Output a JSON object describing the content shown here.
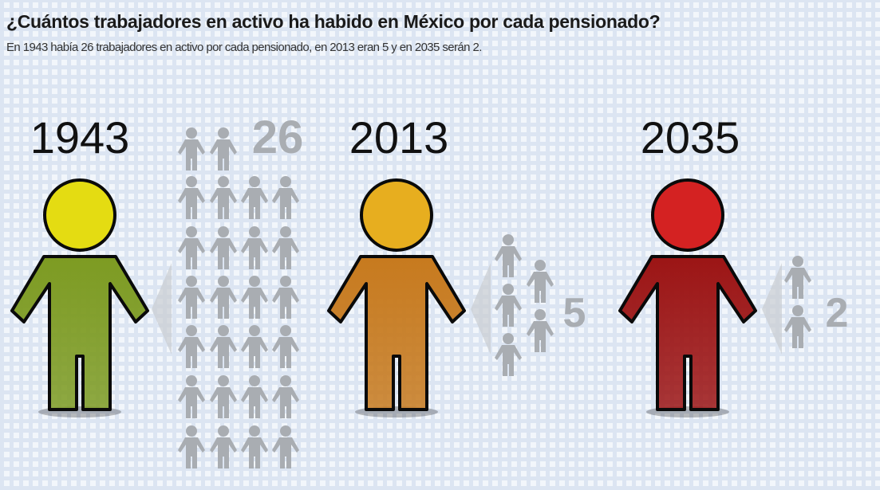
{
  "title": "¿Cuántos trabajadores en activo ha habido en México por cada pensionado?",
  "subtitle": "En 1943 había 26 trabajadores en activo por cada pensionado, en 2013 eran 5 y en 2035 serán 2.",
  "chart_data": {
    "type": "pictogram",
    "title": "¿Cuántos trabajadores en activo ha habido en México por cada pensionado?",
    "categories": [
      "1943",
      "2013",
      "2035"
    ],
    "values": [
      26,
      5,
      2
    ],
    "value_labels": [
      "26",
      "5",
      "2"
    ],
    "unit": "trabajadores en activo por pensionado",
    "colors": {
      "1943": {
        "head": "#e4dc12",
        "body": "#7d9b22"
      },
      "2013": {
        "head": "#e7ae1f",
        "body": "#c77a1e"
      },
      "2035": {
        "head": "#d42222",
        "body": "#9c1515"
      },
      "worker": "#a9adb2"
    }
  }
}
